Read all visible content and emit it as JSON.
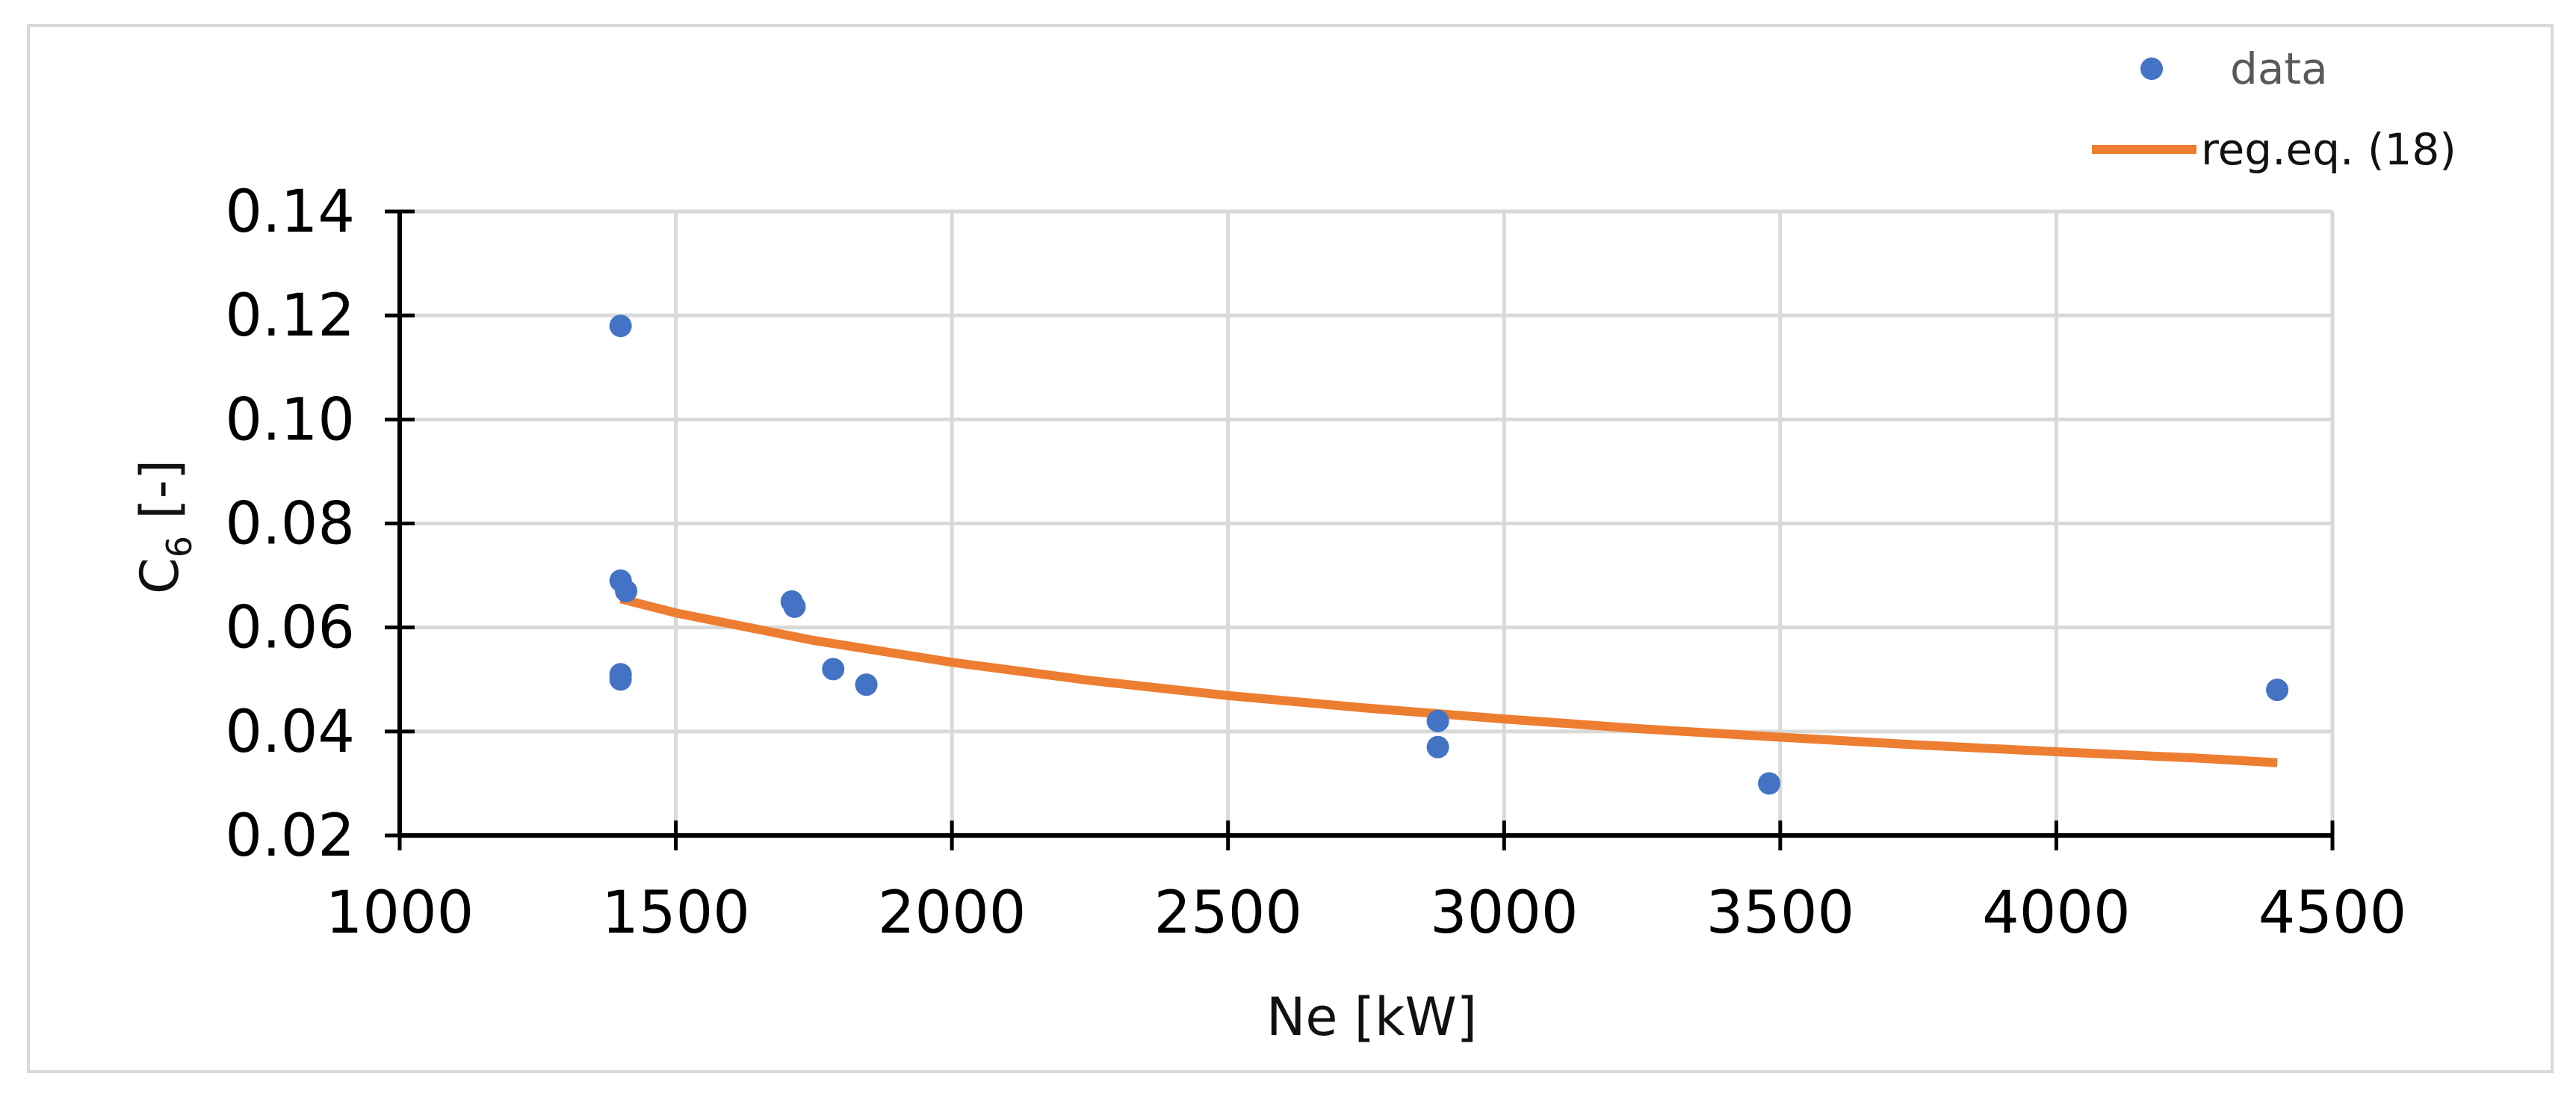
{
  "chart_data": {
    "type": "scatter",
    "title": "",
    "xlabel": "Ne [kW]",
    "ylabel_main": "C",
    "ylabel_sub": "6",
    "ylabel_suffix": " [-]",
    "xlim": [
      1000,
      4500
    ],
    "ylim": [
      0.02,
      0.14
    ],
    "x_ticks": [
      1000,
      1500,
      2000,
      2500,
      3000,
      3500,
      4000,
      4500
    ],
    "y_ticks": [
      0.02,
      0.04,
      0.06,
      0.08,
      0.1,
      0.12,
      0.14
    ],
    "x_tick_labels": [
      "1000",
      "1500",
      "2000",
      "2500",
      "3000",
      "3500",
      "4000",
      "4500"
    ],
    "y_tick_labels": [
      "0.02",
      "0.04",
      "0.06",
      "0.08",
      "0.10",
      "0.12",
      "0.14"
    ],
    "grid": true,
    "legend_position": "top-right",
    "series": [
      {
        "name": "data",
        "kind": "scatter",
        "color": "#4472C4",
        "points": [
          [
            1400,
            0.118
          ],
          [
            1400,
            0.069
          ],
          [
            1410,
            0.067
          ],
          [
            1400,
            0.051
          ],
          [
            1400,
            0.05
          ],
          [
            1710,
            0.065
          ],
          [
            1715,
            0.064
          ],
          [
            1785,
            0.052
          ],
          [
            1845,
            0.049
          ],
          [
            2880,
            0.042
          ],
          [
            2880,
            0.037
          ],
          [
            3480,
            0.03
          ],
          [
            4400,
            0.048
          ]
        ]
      },
      {
        "name": "reg.eq. (18)",
        "kind": "line",
        "color": "#ED7D31",
        "x": [
          1400,
          1500,
          1750,
          2000,
          2250,
          2500,
          2750,
          3000,
          3250,
          3500,
          3750,
          4000,
          4250,
          4400
        ],
        "y": [
          0.0655,
          0.0628,
          0.0575,
          0.0533,
          0.0498,
          0.0469,
          0.0445,
          0.0424,
          0.0405,
          0.0389,
          0.0374,
          0.0361,
          0.0349,
          0.034
        ]
      }
    ]
  }
}
